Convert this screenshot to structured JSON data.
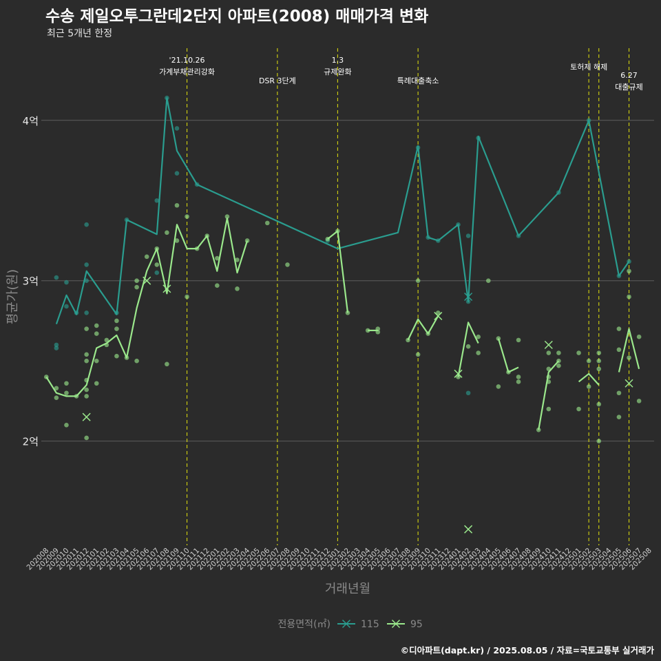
{
  "title": "수송 제일오투그란데2단지 아파트(2008) 매매가격 변화",
  "subtitle": "최근 5개년 한정",
  "caption": "©디아파트(dapt.kr) / 2025.08.05 / 자료=국토교통부 실거래가",
  "chart_data": {
    "type": "line",
    "xlabel": "거래년월",
    "ylabel": "평균가(원)",
    "ylim": [
      1.35,
      4.45
    ],
    "y_ticks": [
      {
        "value": 2,
        "label": "2억"
      },
      {
        "value": 3,
        "label": "3억"
      },
      {
        "value": 4,
        "label": "4억"
      }
    ],
    "grid": true,
    "legend_title": "전용면적(㎡)",
    "legend_position": "bottom",
    "categories": [
      "202008",
      "202009",
      "202010",
      "202011",
      "202012",
      "202101",
      "202102",
      "202103",
      "202104",
      "202105",
      "202106",
      "202107",
      "202108",
      "202109",
      "202110",
      "202111",
      "202112",
      "202201",
      "202202",
      "202203",
      "202204",
      "202205",
      "202206",
      "202207",
      "202208",
      "202209",
      "202210",
      "202211",
      "202212",
      "202301",
      "202302",
      "202303",
      "202304",
      "202305",
      "202306",
      "202307",
      "202308",
      "202309",
      "202310",
      "202311",
      "202312",
      "202401",
      "202402",
      "202403",
      "202404",
      "202405",
      "202406",
      "202407",
      "202408",
      "202409",
      "202410",
      "202411",
      "202412",
      "202501",
      "202502",
      "202503",
      "202504",
      "202505",
      "202506",
      "202507",
      "202508"
    ],
    "annotations": [
      {
        "x": "202110",
        "lines": [
          "'21.10.26",
          "가계부채관리강화"
        ],
        "row": 0
      },
      {
        "x": "202207",
        "lines": [
          "DSR 3단계"
        ],
        "row": 1
      },
      {
        "x": "202301",
        "lines": [
          "1.3",
          "규제완화"
        ],
        "row": 0
      },
      {
        "x": "202309",
        "lines": [
          "특례대출축소"
        ],
        "row": 1
      },
      {
        "x": "202502",
        "lines": [
          "토허제 해제"
        ],
        "row": 0
      },
      {
        "x": "202503",
        "lines": [],
        "row": 0
      },
      {
        "x": "202506",
        "lines": [
          "6.27",
          "대출규제"
        ],
        "row": 2
      }
    ],
    "series": [
      {
        "name": "115",
        "color": "#2a9d8f",
        "line": [
          [
            "202009",
            2.73
          ],
          [
            "202010",
            2.91
          ],
          [
            "202011",
            2.79
          ],
          [
            "202012",
            3.06
          ],
          [
            "202103",
            2.79
          ],
          [
            "202104",
            3.38
          ],
          [
            "202107",
            3.29
          ],
          [
            "202108",
            4.14
          ],
          [
            "202109",
            3.81
          ],
          [
            "202111",
            3.6
          ],
          [
            "202301",
            3.2
          ],
          [
            "202307",
            3.3
          ],
          [
            "202309",
            3.84
          ],
          [
            "202310",
            3.27
          ],
          [
            "202311",
            3.25
          ],
          [
            "202401",
            3.35
          ],
          [
            "202402",
            2.87
          ],
          [
            "202403",
            3.9
          ],
          [
            "202407",
            3.28
          ],
          [
            "202411",
            3.55
          ],
          [
            "202502",
            4.0
          ],
          [
            "202505",
            3.03
          ],
          [
            "202506",
            3.12
          ]
        ],
        "points": [
          [
            "202009",
            3.02
          ],
          [
            "202009",
            2.6
          ],
          [
            "202009",
            2.58
          ],
          [
            "202010",
            2.99
          ],
          [
            "202010",
            2.84
          ],
          [
            "202011",
            2.8
          ],
          [
            "202012",
            3.35
          ],
          [
            "202012",
            3.1
          ],
          [
            "202012",
            2.8
          ],
          [
            "202012",
            3.0
          ],
          [
            "202103",
            2.8
          ],
          [
            "202104",
            3.38
          ],
          [
            "202107",
            3.5
          ],
          [
            "202107",
            3.05
          ],
          [
            "202108",
            4.14
          ],
          [
            "202109",
            3.95
          ],
          [
            "202109",
            3.67
          ],
          [
            "202111",
            3.6
          ],
          [
            "202212",
            3.25
          ],
          [
            "202309",
            3.83
          ],
          [
            "202310",
            3.27
          ],
          [
            "202311",
            3.25
          ],
          [
            "202401",
            3.35
          ],
          [
            "202402",
            3.28
          ],
          [
            "202402",
            2.3
          ],
          [
            "202402",
            2.87
          ],
          [
            "202403",
            3.89
          ],
          [
            "202407",
            3.28
          ],
          [
            "202411",
            3.55
          ],
          [
            "202502",
            4.0
          ],
          [
            "202505",
            3.03
          ],
          [
            "202506",
            3.12
          ]
        ],
        "x_markers": [
          [
            "202402",
            2.9
          ]
        ]
      },
      {
        "name": "95",
        "color": "#9be88c",
        "segments": [
          [
            [
              "202008",
              2.4
            ],
            [
              "202009",
              2.3
            ],
            [
              "202010",
              2.28
            ],
            [
              "202011",
              2.28
            ],
            [
              "202012",
              2.35
            ],
            [
              "202101",
              2.58
            ],
            [
              "202102",
              2.61
            ],
            [
              "202103",
              2.66
            ],
            [
              "202104",
              2.52
            ],
            [
              "202105",
              2.83
            ],
            [
              "202106",
              3.06
            ],
            [
              "202107",
              3.2
            ],
            [
              "202108",
              2.92
            ],
            [
              "202109",
              3.35
            ],
            [
              "202110",
              3.2
            ],
            [
              "202111",
              3.2
            ],
            [
              "202112",
              3.28
            ],
            [
              "202201",
              3.06
            ],
            [
              "202202",
              3.39
            ],
            [
              "202203",
              3.05
            ],
            [
              "202204",
              3.25
            ]
          ],
          [
            [
              "202212",
              3.26
            ],
            [
              "202301",
              3.31
            ],
            [
              "202302",
              2.8
            ]
          ],
          [
            [
              "202304",
              2.69
            ],
            [
              "202305",
              2.69
            ]
          ],
          [
            [
              "202308",
              2.63
            ],
            [
              "202309",
              2.76
            ],
            [
              "202310",
              2.67
            ],
            [
              "202311",
              2.78
            ]
          ],
          [
            [
              "202401",
              2.4
            ],
            [
              "202402",
              2.74
            ],
            [
              "202403",
              2.61
            ]
          ],
          [
            [
              "202405",
              2.64
            ],
            [
              "202406",
              2.43
            ],
            [
              "202407",
              2.46
            ]
          ],
          [
            [
              "202409",
              2.07
            ],
            [
              "202410",
              2.43
            ],
            [
              "202411",
              2.5
            ]
          ],
          [
            [
              "202501",
              2.37
            ],
            [
              "202502",
              2.42
            ],
            [
              "202503",
              2.35
            ]
          ],
          [
            [
              "202505",
              2.43
            ],
            [
              "202506",
              2.7
            ],
            [
              "202507",
              2.45
            ]
          ]
        ],
        "points": [
          [
            "202008",
            2.4
          ],
          [
            "202009",
            2.33
          ],
          [
            "202009",
            2.27
          ],
          [
            "202010",
            2.36
          ],
          [
            "202010",
            2.3
          ],
          [
            "202010",
            2.1
          ],
          [
            "202011",
            2.28
          ],
          [
            "202012",
            2.7
          ],
          [
            "202012",
            2.54
          ],
          [
            "202012",
            2.5
          ],
          [
            "202012",
            2.38
          ],
          [
            "202012",
            2.32
          ],
          [
            "202012",
            2.28
          ],
          [
            "202012",
            2.02
          ],
          [
            "202101",
            2.72
          ],
          [
            "202101",
            2.67
          ],
          [
            "202101",
            2.5
          ],
          [
            "202101",
            2.36
          ],
          [
            "202102",
            2.63
          ],
          [
            "202102",
            2.6
          ],
          [
            "202103",
            2.75
          ],
          [
            "202103",
            2.7
          ],
          [
            "202103",
            2.53
          ],
          [
            "202104",
            2.52
          ],
          [
            "202105",
            3.0
          ],
          [
            "202105",
            2.96
          ],
          [
            "202105",
            2.5
          ],
          [
            "202106",
            3.15
          ],
          [
            "202107",
            3.1
          ],
          [
            "202107",
            3.2
          ],
          [
            "202108",
            2.48
          ],
          [
            "202108",
            3.3
          ],
          [
            "202109",
            3.47
          ],
          [
            "202109",
            3.25
          ],
          [
            "202110",
            3.4
          ],
          [
            "202110",
            2.9
          ],
          [
            "202111",
            3.2
          ],
          [
            "202112",
            3.28
          ],
          [
            "202201",
            3.14
          ],
          [
            "202201",
            2.97
          ],
          [
            "202202",
            3.4
          ],
          [
            "202203",
            3.13
          ],
          [
            "202203",
            2.95
          ],
          [
            "202204",
            3.25
          ],
          [
            "202206",
            3.36
          ],
          [
            "202208",
            3.1
          ],
          [
            "202212",
            3.26
          ],
          [
            "202301",
            3.31
          ],
          [
            "202302",
            2.8
          ],
          [
            "202304",
            2.69
          ],
          [
            "202305",
            2.7
          ],
          [
            "202305",
            2.68
          ],
          [
            "202308",
            2.63
          ],
          [
            "202309",
            3.0
          ],
          [
            "202309",
            2.54
          ],
          [
            "202310",
            2.67
          ],
          [
            "202311",
            2.8
          ],
          [
            "202401",
            2.4
          ],
          [
            "202402",
            2.59
          ],
          [
            "202403",
            2.65
          ],
          [
            "202403",
            2.55
          ],
          [
            "202404",
            3.0
          ],
          [
            "202405",
            2.64
          ],
          [
            "202405",
            2.34
          ],
          [
            "202406",
            2.43
          ],
          [
            "202407",
            2.63
          ],
          [
            "202407",
            2.4
          ],
          [
            "202407",
            2.37
          ],
          [
            "202409",
            2.07
          ],
          [
            "202410",
            2.55
          ],
          [
            "202410",
            2.45
          ],
          [
            "202410",
            2.4
          ],
          [
            "202410",
            2.37
          ],
          [
            "202410",
            2.2
          ],
          [
            "202411",
            2.55
          ],
          [
            "202411",
            2.5
          ],
          [
            "202411",
            2.47
          ],
          [
            "202501",
            2.55
          ],
          [
            "202501",
            2.2
          ],
          [
            "202502",
            2.5
          ],
          [
            "202502",
            2.34
          ],
          [
            "202503",
            2.55
          ],
          [
            "202503",
            2.5
          ],
          [
            "202503",
            2.45
          ],
          [
            "202503",
            2.23
          ],
          [
            "202503",
            2.0
          ],
          [
            "202505",
            2.7
          ],
          [
            "202505",
            2.57
          ],
          [
            "202505",
            2.3
          ],
          [
            "202505",
            2.15
          ],
          [
            "202506",
            3.06
          ],
          [
            "202506",
            2.9
          ],
          [
            "202506",
            2.52
          ],
          [
            "202507",
            2.65
          ],
          [
            "202507",
            2.25
          ]
        ],
        "x_markers": [
          [
            "202012",
            2.15
          ],
          [
            "202106",
            3.0
          ],
          [
            "202108",
            2.95
          ],
          [
            "202311",
            2.78
          ],
          [
            "202401",
            2.42
          ],
          [
            "202402",
            1.45
          ],
          [
            "202410",
            2.6
          ],
          [
            "202506",
            2.36
          ]
        ]
      }
    ]
  }
}
